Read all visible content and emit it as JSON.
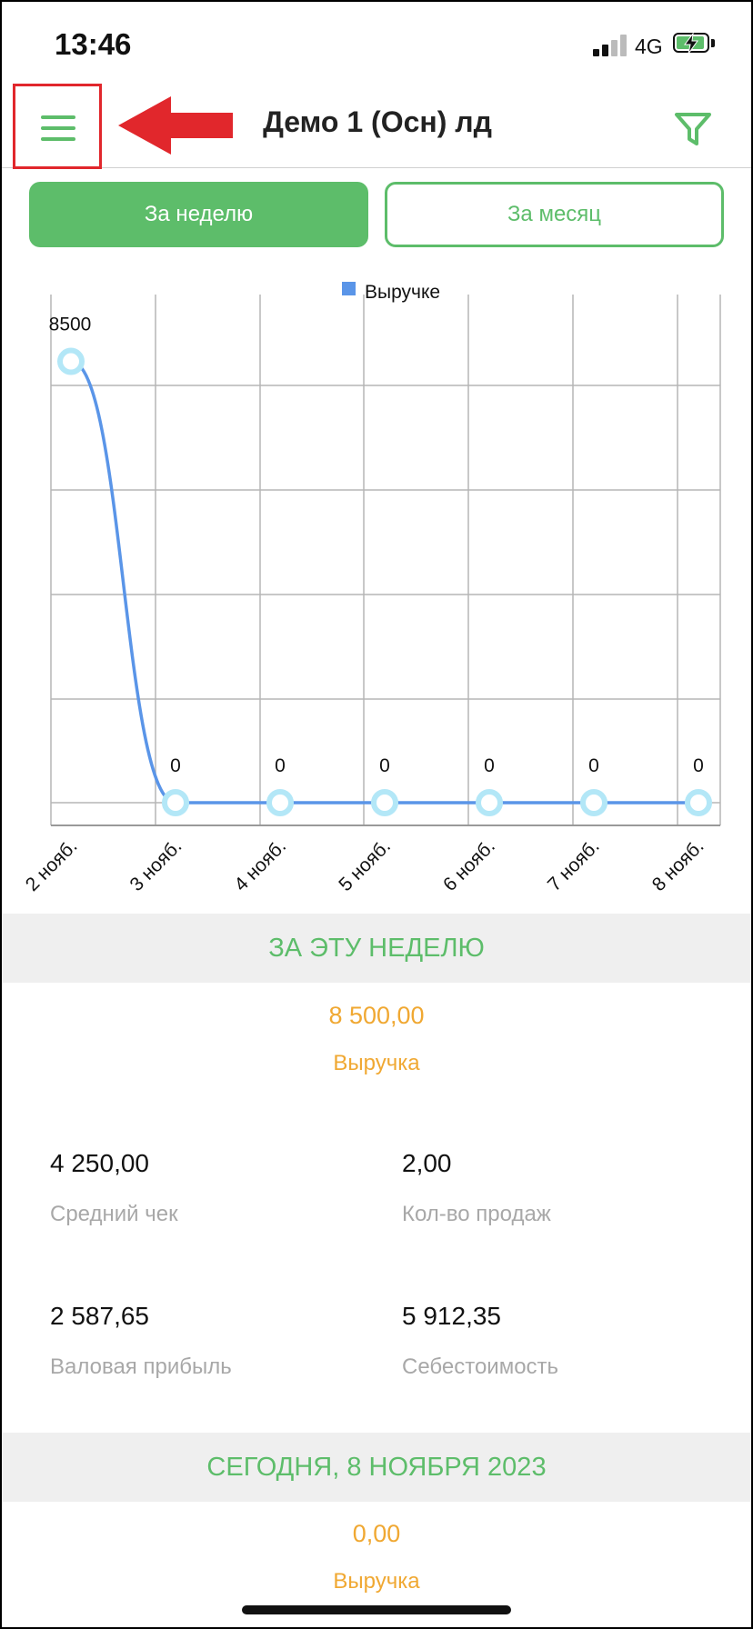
{
  "status_bar": {
    "time": "13:46",
    "network": "4G"
  },
  "header": {
    "title": "Демо 1 (Осн) лд",
    "menu_icon": "hamburger-menu-icon",
    "filter_icon": "filter-funnel-icon",
    "annotation": "red-arrow-pointing-left"
  },
  "tabs": {
    "week": "За неделю",
    "month": "За месяц"
  },
  "colors": {
    "accent": "#5dbd6a",
    "line": "#5a95e8",
    "marker": "#b3e7f7",
    "value": "#f0a832",
    "annotation": "#e1272c"
  },
  "chart_data": {
    "type": "line",
    "legend": {
      "label": "Выручке",
      "position": "top"
    },
    "categories": [
      "2 нояб.",
      "3 нояб.",
      "4 нояб.",
      "5 нояб.",
      "6 нояб.",
      "7 нояб.",
      "8 нояб."
    ],
    "series": [
      {
        "name": "Выручке",
        "values": [
          8500,
          0,
          0,
          0,
          0,
          0,
          0
        ]
      }
    ],
    "data_labels": [
      "8500",
      "0",
      "0",
      "0",
      "0",
      "0",
      "0"
    ],
    "ylim": [
      0,
      9000
    ],
    "grid": true
  },
  "week_summary": {
    "title": "ЗА ЭТУ НЕДЕЛЮ",
    "revenue_value": "8 500,00",
    "revenue_label": "Выручка",
    "avg_check_value": "4 250,00",
    "avg_check_label": "Средний чек",
    "sales_count_value": "2,00",
    "sales_count_label": "Кол-во продаж",
    "gross_profit_value": "2 587,65",
    "gross_profit_label": "Валовая прибыль",
    "cost_value": "5 912,35",
    "cost_label": "Себестоимость"
  },
  "today_summary": {
    "title": "СЕГОДНЯ,  8 НОЯБРЯ 2023",
    "revenue_value": "0,00",
    "revenue_label": "Выручка"
  }
}
